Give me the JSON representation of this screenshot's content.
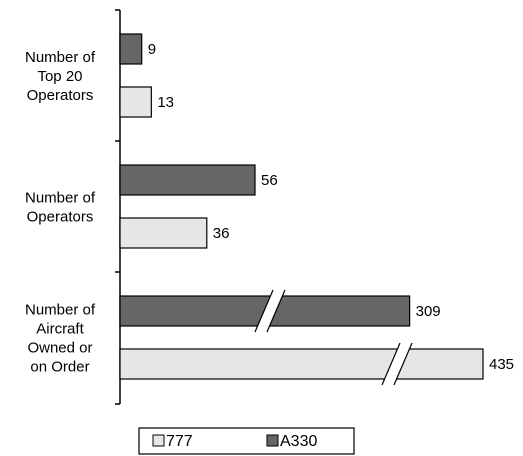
{
  "chart_data": {
    "type": "bar",
    "orientation": "horizontal",
    "axis_break": true,
    "legend_position": "bottom",
    "categories": [
      {
        "lines": [
          "Number of",
          "Top 20",
          "Operators"
        ]
      },
      {
        "lines": [
          "Number of",
          "Operators"
        ]
      },
      {
        "lines": [
          "Number of",
          "Aircraft",
          "Owned or",
          "on Order"
        ]
      }
    ],
    "series": [
      {
        "name": "A330",
        "color": "#666666",
        "values": [
          9,
          56,
          309
        ]
      },
      {
        "name": "777",
        "color": "#e6e6e6",
        "values": [
          13,
          36,
          435
        ]
      }
    ],
    "legend": [
      {
        "name": "777",
        "color": "#e6e6e6"
      },
      {
        "name": "A330",
        "color": "#666666"
      }
    ],
    "xlim": [
      0,
      80
    ]
  }
}
